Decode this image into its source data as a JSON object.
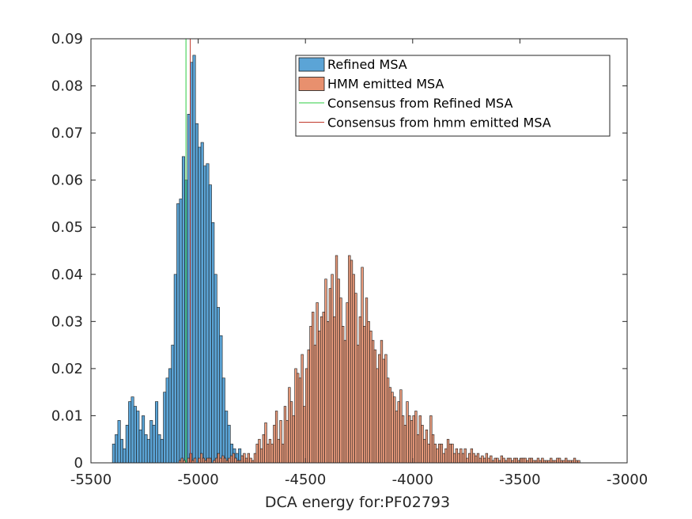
{
  "chart_data": {
    "type": "bar",
    "title": "",
    "xlabel": "DCA energy for:PF02793",
    "ylabel": "",
    "xlim": [
      -5500,
      -3000
    ],
    "ylim": [
      0,
      0.09
    ],
    "xticks": [
      "-5500",
      "-5000",
      "-4500",
      "-4000",
      "-3500",
      "-3000"
    ],
    "yticks": [
      "0",
      "0.01",
      "0.02",
      "0.03",
      "0.04",
      "0.05",
      "0.06",
      "0.07",
      "0.08",
      "0.09"
    ],
    "grid": false,
    "legend_position": "top-right",
    "series": [
      {
        "name": "Refined MSA",
        "kind": "histogram",
        "color": "#5ba4d6",
        "bin_start": -5400,
        "bin_width": 12.5,
        "values": [
          0.004,
          0.006,
          0.009,
          0.005,
          0.003,
          0.008,
          0.013,
          0.014,
          0.012,
          0.011,
          0.007,
          0.01,
          0.006,
          0.005,
          0.009,
          0.008,
          0.013,
          0.006,
          0.005,
          0.015,
          0.018,
          0.02,
          0.025,
          0.04,
          0.055,
          0.056,
          0.065,
          0.06,
          0.074,
          0.085,
          0.0865,
          0.072,
          0.067,
          0.068,
          0.063,
          0.0635,
          0.059,
          0.051,
          0.04,
          0.033,
          0.027,
          0.018,
          0.011,
          0.008,
          0.004,
          0.003,
          0.002,
          0.003,
          0.0015,
          0.0005
        ]
      },
      {
        "name": "HMM emitted MSA",
        "kind": "histogram",
        "color": "#e8906e",
        "bin_start": -5090,
        "bin_width": 10,
        "values": [
          0.0005,
          0.001,
          0.0005,
          0,
          0.001,
          0.002,
          0.0005,
          0.001,
          0,
          0.001,
          0.002,
          0.001,
          0.0005,
          0.001,
          0.001,
          0,
          0.0005,
          0.001,
          0.002,
          0.001,
          0.0015,
          0.001,
          0.0005,
          0.001,
          0.0015,
          0.002,
          0.001,
          0.0005,
          0.0005,
          0.0015,
          0.002,
          0.001,
          0.002,
          0.001,
          0.0005,
          0.002,
          0.004,
          0.005,
          0.003,
          0.006,
          0.0085,
          0.004,
          0.005,
          0.004,
          0.008,
          0.011,
          0.005,
          0.009,
          0.004,
          0.012,
          0.009,
          0.016,
          0.013,
          0.01,
          0.02,
          0.019,
          0.018,
          0.023,
          0.012,
          0.02,
          0.024,
          0.029,
          0.032,
          0.025,
          0.034,
          0.028,
          0.031,
          0.032,
          0.039,
          0.03,
          0.037,
          0.04,
          0.031,
          0.044,
          0.039,
          0.035,
          0.029,
          0.026,
          0.034,
          0.044,
          0.043,
          0.04,
          0.036,
          0.025,
          0.031,
          0.0415,
          0.029,
          0.035,
          0.03,
          0.028,
          0.026,
          0.024,
          0.02,
          0.023,
          0.026,
          0.022,
          0.023,
          0.018,
          0.016,
          0.015,
          0.014,
          0.011,
          0.013,
          0.0155,
          0.01,
          0.008,
          0.013,
          0.01,
          0.009,
          0.01,
          0.011,
          0.006,
          0.01,
          0.008,
          0.005,
          0.007,
          0.004,
          0.01,
          0.006,
          0.004,
          0.003,
          0.004,
          0.004,
          0.002,
          0.003,
          0.005,
          0.004,
          0.004,
          0.002,
          0.003,
          0.002,
          0.003,
          0.002,
          0.003,
          0.001,
          0.002,
          0.003,
          0.002,
          0.0015,
          0.002,
          0.001,
          0.0015,
          0.001,
          0.002,
          0.001,
          0.0015,
          0.0005,
          0.001,
          0.001,
          0.0005,
          0.0015,
          0.001,
          0.0005,
          0.001,
          0.001,
          0.0005,
          0.001,
          0.001,
          0.0005,
          0.001,
          0.001,
          0.001,
          0.0005,
          0.001,
          0.001,
          0.0005,
          0.0005,
          0.001,
          0.0005,
          0.001,
          0.0005,
          0.0005,
          0.0005,
          0.001,
          0.0005,
          0.0005,
          0.001,
          0.001,
          0.0005,
          0.0005,
          0.001,
          0.0005,
          0.0005,
          0.0005,
          0.001,
          0.0005,
          0.0005
        ]
      },
      {
        "name": "Consensus from Refined MSA",
        "kind": "vline",
        "color": "#2ecc40",
        "x": -5057
      },
      {
        "name": "Consensus from hmm emitted MSA",
        "kind": "vline",
        "color": "#c0392b",
        "x": -5037
      }
    ]
  }
}
